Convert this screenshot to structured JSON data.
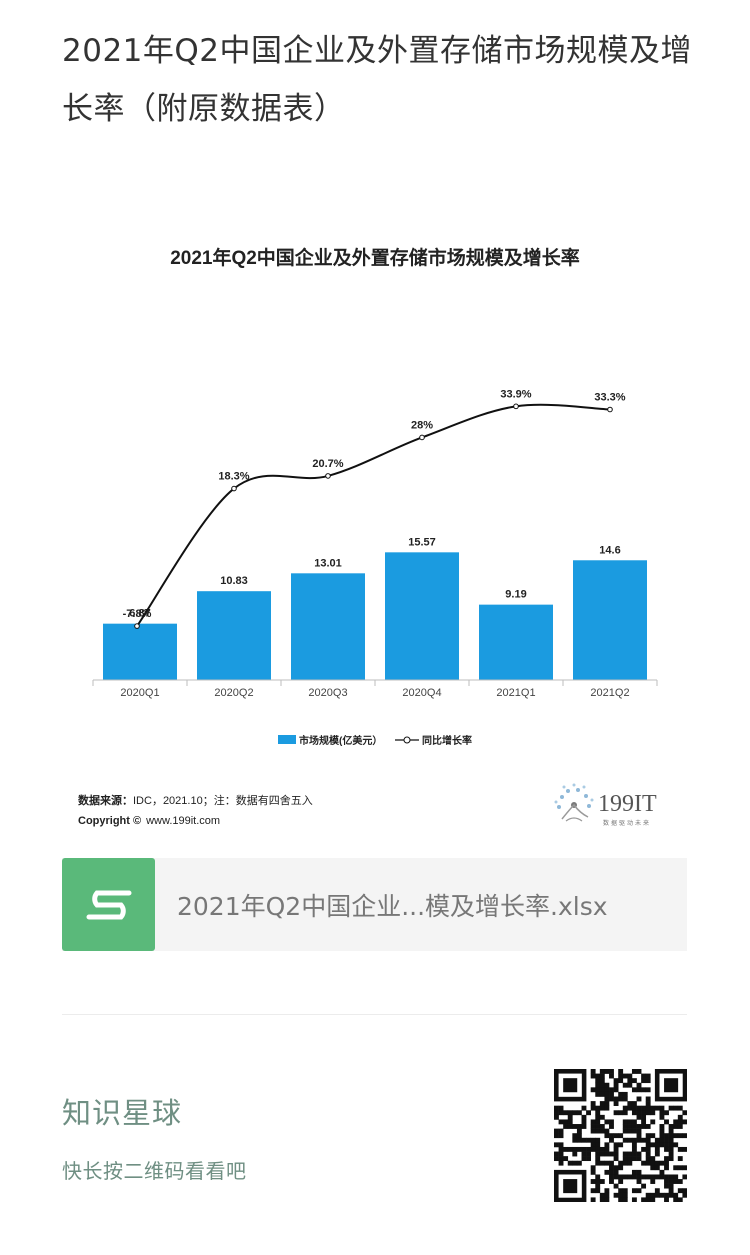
{
  "post": {
    "title": "2021年Q2中国企业及外置存储市场规模及增长率（附原数据表）"
  },
  "chart_data": {
    "type": "bar",
    "title": "2021年Q2中国企业及外置存储市场规模及增长率",
    "categories": [
      "2020Q1",
      "2020Q2",
      "2020Q3",
      "2020Q4",
      "2021Q1",
      "2021Q2"
    ],
    "series": [
      {
        "name": "市场规模(亿美元）",
        "type": "bar",
        "values": [
          6.87,
          10.83,
          13.01,
          15.57,
          9.19,
          14.6
        ],
        "labels": [
          "6.87",
          "10.83",
          "13.01",
          "15.57",
          "9.19",
          "14.6"
        ],
        "color": "#1b9be0"
      },
      {
        "name": "同比增长率",
        "type": "line",
        "values": [
          -7.8,
          18.3,
          20.7,
          28,
          33.9,
          33.3
        ],
        "labels": [
          "-7.8%",
          "18.3%",
          "20.7%",
          "28%",
          "33.9%",
          "33.3%"
        ],
        "color": "#111111"
      }
    ],
    "legend_position": "bottom",
    "grid": false,
    "source_label": "数据来源：",
    "source_text": "IDC，2021.10；注：数据有四舍五入",
    "copyright_label": "Copyright ©",
    "copyright_text": "www.199it.com",
    "brand": "199IT",
    "brand_tagline": "数据驱动未来"
  },
  "file": {
    "icon": "s-sheet-icon",
    "name": "2021年Q2中国企业...模及增长率.xlsx",
    "color": "#5ab97a"
  },
  "planet": {
    "title": "知识星球",
    "subtitle": "快长按二维码看看吧"
  }
}
